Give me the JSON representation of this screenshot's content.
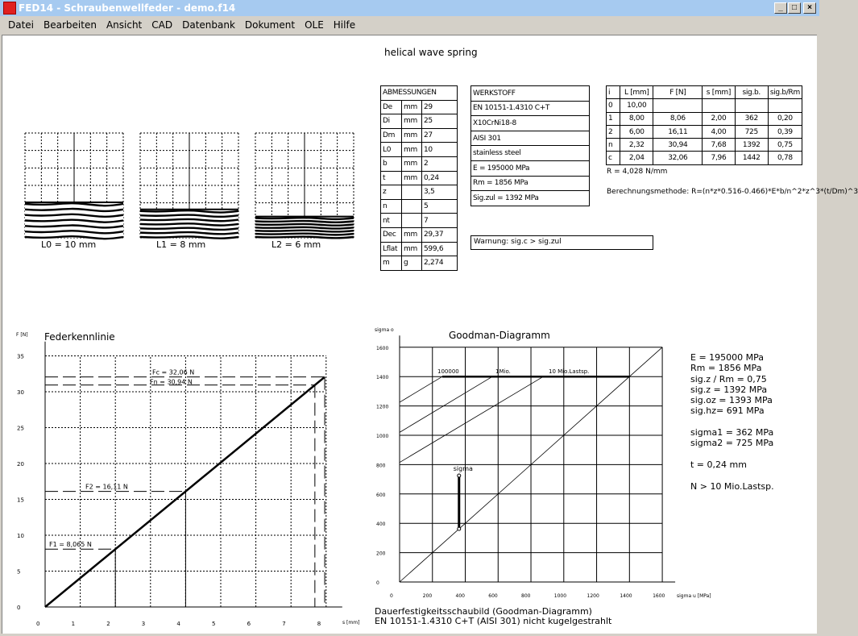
{
  "window": {
    "title": "FED14 - Schraubenwellfeder  -  demo.f14",
    "buttons": [
      "_",
      "□",
      "×"
    ]
  },
  "menu": [
    "Datei",
    "Bearbeiten",
    "Ansicht",
    "CAD",
    "Datenbank",
    "Dokument",
    "OLE",
    "Hilfe"
  ],
  "doc_title": "helical wave spring",
  "springs": [
    {
      "label": "L0 = 10 mm",
      "L": 10
    },
    {
      "label": "L1 = 8 mm",
      "L": 8
    },
    {
      "label": "L2 = 6 mm",
      "L": 6
    }
  ],
  "abmessungen": {
    "header": "ABMESSUNGEN",
    "rows": [
      [
        "De",
        "mm",
        "29"
      ],
      [
        "Di",
        "mm",
        "25"
      ],
      [
        "Dm",
        "mm",
        "27"
      ],
      [
        "L0",
        "mm",
        "10"
      ],
      [
        "b",
        "mm",
        "2"
      ],
      [
        "t",
        "mm",
        "0,24"
      ],
      [
        "z",
        "",
        "3,5"
      ],
      [
        "n",
        "",
        "5"
      ],
      [
        "nt",
        "",
        "7"
      ],
      [
        "Dec",
        "mm",
        "29,37"
      ],
      [
        "Lflat",
        "mm",
        "599,6"
      ],
      [
        "m",
        "g",
        "2,274"
      ]
    ]
  },
  "werkstoff": {
    "header": "WERKSTOFF",
    "rows": [
      "EN 10151-1.4310 C+T",
      "X10CrNi18-8",
      "AISI 301",
      "stainless steel",
      "E = 195000 MPa",
      "Rm = 1856 MPa",
      "Sig.zul = 1392 MPa"
    ]
  },
  "warning": "Warnung: sig.c > sig.zul",
  "results": {
    "headers": [
      "i",
      "L [mm]",
      "F [N]",
      "s [mm]",
      "sig.b.",
      "sig.b/Rm"
    ],
    "rows": [
      [
        "0",
        "10,00",
        "",
        "",
        "",
        ""
      ],
      [
        "1",
        "8,00",
        "8,06",
        "2,00",
        "362",
        "0,20"
      ],
      [
        "2",
        "6,00",
        "16,11",
        "4,00",
        "725",
        "0,39"
      ],
      [
        "n",
        "2,32",
        "30,94",
        "7,68",
        "1392",
        "0,75"
      ],
      [
        "c",
        "2,04",
        "32,06",
        "7,96",
        "1442",
        "0,78"
      ]
    ]
  },
  "rate": "R = 4,028 N/mm",
  "method": "Berechnungsmethode: R=(n*z*0.516-0.466)*E*b/n^2*z^3*(t/Dm)^3",
  "goodman_info": [
    "E = 195000 MPa",
    "Rm = 1856 MPa",
    "sig.z / Rm = 0,75",
    "sig.z = 1392 MPa",
    "sig.oz = 1393 MPa",
    "sig.hz=  691 MPa",
    "",
    "sigma1 =  362 MPa",
    "sigma2 =  725 MPa",
    "",
    "t = 0,24 mm",
    "",
    "N > 10 Mio.Lastsp."
  ],
  "goodman_caption": [
    "Dauerfestigkeitsschaubild (Goodman-Diagramm)",
    "EN 10151-1.4310 C+T (AISI 301) nicht kugelgestrahlt"
  ],
  "chart_data": [
    {
      "type": "line",
      "title": "Federkennlinie",
      "xlabel": "s [mm]",
      "ylabel": "F [N]",
      "xlim": [
        0,
        8
      ],
      "ylim": [
        0,
        35
      ],
      "xticks": [
        "0",
        "1",
        "2",
        "3",
        "4",
        "5",
        "6",
        "7",
        "8"
      ],
      "yticks": [
        "0",
        "5",
        "10",
        "15",
        "20",
        "25",
        "30",
        "35"
      ],
      "grid": true,
      "series": [
        {
          "x": [
            0,
            7.96
          ],
          "y": [
            0,
            32.06
          ]
        }
      ],
      "markers": [
        {
          "label": "F1 = 8,065 N",
          "s": 2.0,
          "F": 8.065
        },
        {
          "label": "F2 = 16,11 N",
          "s": 4.0,
          "F": 16.11
        },
        {
          "label": "Fn = 30,94 N",
          "s": 7.68,
          "F": 30.94
        },
        {
          "label": "Fc = 32,06 N",
          "s": 7.96,
          "F": 32.06
        }
      ]
    },
    {
      "type": "line",
      "title": "Goodman-Diagramm",
      "xlabel": "sigma u [MPa]",
      "ylabel": "sigma o",
      "xlim": [
        0,
        1600
      ],
      "ylim": [
        0,
        1600
      ],
      "xticks": [
        "0",
        "200",
        "400",
        "600",
        "800",
        "1000",
        "1200",
        "1400",
        "1600"
      ],
      "yticks": [
        "0",
        "200",
        "400",
        "600",
        "800",
        "1000",
        "1200",
        "1400",
        "1600"
      ],
      "grid": true,
      "series": [
        {
          "name": "100000",
          "x": [
            0,
            260
          ],
          "y": [
            1225,
            1400
          ]
        },
        {
          "name": "1Mio.",
          "x": [
            0,
            565
          ],
          "y": [
            1020,
            1400
          ]
        },
        {
          "name": "10 Mio.Lastsp.",
          "x": [
            0,
            875
          ],
          "y": [
            815,
            1400
          ]
        },
        {
          "x": [
            260,
            1400
          ],
          "y": [
            1400,
            1400
          ]
        },
        {
          "x": [
            0,
            1600
          ],
          "y": [
            0,
            1600
          ]
        }
      ],
      "stress": {
        "label": "sigma",
        "sigma_u": 362,
        "sigma1": 362,
        "sigma2": 725
      }
    }
  ]
}
